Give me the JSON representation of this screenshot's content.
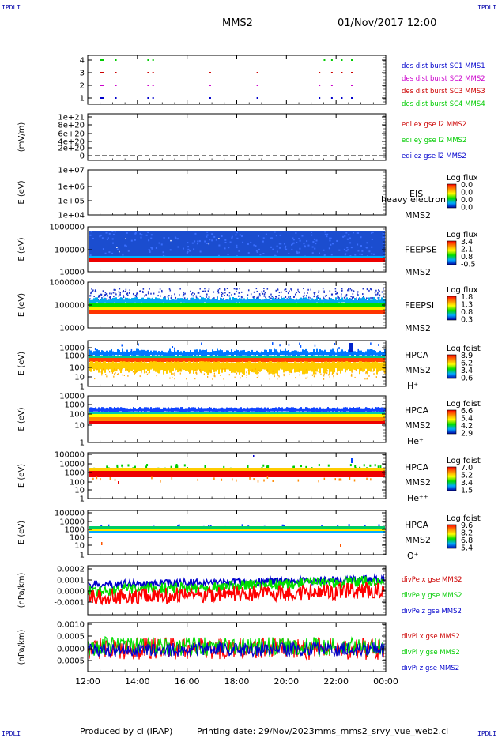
{
  "corners": {
    "label": "IPDLI"
  },
  "header": {
    "spacecraft": "MMS2",
    "date": "01/Nov/2017 12:00"
  },
  "footer": {
    "produced": "Produced by cl (IRAP)",
    "printing": "Printing date: 29/Nov/2023",
    "file": "mms_mms2_srvy_vue_web2.cl"
  },
  "time_axis": {
    "ticks": [
      "12:00",
      "14:00",
      "16:00",
      "18:00",
      "20:00",
      "22:00",
      "00:00"
    ],
    "start_hour": 12,
    "end_hour": 24
  },
  "colors": {
    "red": "#ff0000",
    "green": "#00dd00",
    "blue": "#0000cc",
    "magenta": "#cc00cc"
  },
  "chart_data": [
    {
      "type": "scatter",
      "panel": "burst",
      "yticks": [
        "4",
        "3",
        "2",
        "1"
      ],
      "legend": [
        {
          "text": "des dist burst SC1 MMS1",
          "color": "#0000cc"
        },
        {
          "text": "des dist burst SC2 MMS2",
          "color": "#cc00cc"
        },
        {
          "text": "des dist burst SC3 MMS3",
          "color": "#cc0000"
        },
        {
          "text": "des dist burst SC4 MMS4",
          "color": "#00cc00"
        }
      ],
      "series": [
        {
          "name": "des dist burst SC4 MMS4",
          "y": 4,
          "x": [
            12.5,
            13.1,
            14.4,
            14.6,
            21.5,
            21.8,
            22.2,
            22.6
          ]
        },
        {
          "name": "des dist burst SC3 MMS3",
          "y": 3,
          "x": [
            12.5,
            13.1,
            14.4,
            14.6,
            16.9,
            18.8,
            21.3,
            21.8,
            22.2,
            22.6
          ]
        },
        {
          "name": "des dist burst SC2 MMS2",
          "y": 2,
          "x": [
            12.5,
            13.1,
            14.4,
            14.6,
            16.9,
            18.8,
            21.3,
            21.8,
            22.6
          ]
        },
        {
          "name": "des dist burst SC1 MMS1",
          "y": 1,
          "x": [
            12.5,
            13.1,
            14.4,
            14.6,
            16.9,
            18.8,
            21.3,
            21.8,
            22.2,
            22.6
          ]
        }
      ]
    },
    {
      "type": "line",
      "panel": "edi",
      "ylabel": "(mV/m)",
      "yticks": [
        "1e+21",
        "8e+20",
        "6e+20",
        "4e+20",
        "2e+20",
        "0"
      ],
      "legend": [
        {
          "text": "edi ex gse l2 MMS2",
          "color": "#cc0000"
        },
        {
          "text": "edi ey gse l2 MMS2",
          "color": "#00cc00"
        },
        {
          "text": "edi ez gse l2 MMS2",
          "color": "#0000cc"
        }
      ],
      "y": 0
    },
    {
      "type": "heatmap",
      "panel": "eis",
      "ylabel": "E (eV)",
      "yticks": [
        "1e+07",
        "1e+06",
        "1e+05",
        "1e+04"
      ],
      "labels": [
        "EIS",
        "heavy electron to",
        "MMS2"
      ],
      "colorbar": {
        "title": "Log flux",
        "ticks": [
          "0.0",
          "0.0",
          "0.0",
          "0.0"
        ]
      }
    },
    {
      "type": "heatmap",
      "panel": "feepse",
      "ylabel": "E (eV)",
      "yticks": [
        "1000000",
        "100000",
        "10000"
      ],
      "labels": [
        "FEEPSE",
        "MMS2"
      ],
      "colorbar": {
        "title": "Log flux",
        "ticks": [
          "3.4",
          "2.1",
          "0.8",
          "-0.5"
        ]
      }
    },
    {
      "type": "heatmap",
      "panel": "feepsi",
      "ylabel": "E (eV)",
      "yticks": [
        "1000000",
        "100000",
        "10000"
      ],
      "labels": [
        "FEEPSI",
        "MMS2"
      ],
      "colorbar": {
        "title": "Log flux",
        "ticks": [
          "1.8",
          "1.3",
          "0.8",
          "0.3"
        ]
      }
    },
    {
      "type": "heatmap",
      "panel": "hpca_h",
      "ylabel": "E (eV)",
      "yticks": [
        "10000",
        "1000",
        "100",
        "10",
        "1"
      ],
      "labels": [
        "HPCA",
        "MMS2",
        "H⁺"
      ],
      "colorbar": {
        "title": "Log fdist",
        "ticks": [
          "8.9",
          "6.2",
          "3.4",
          "0.6"
        ]
      }
    },
    {
      "type": "heatmap",
      "panel": "hpca_he",
      "ylabel": "E (eV)",
      "yticks": [
        "10000",
        "1000",
        "100",
        "10",
        "1"
      ],
      "labels": [
        "HPCA",
        "MMS2",
        "He⁺"
      ],
      "colorbar": {
        "title": "Log fdist",
        "ticks": [
          "6.6",
          "5.4",
          "4.2",
          "2.9"
        ]
      }
    },
    {
      "type": "heatmap",
      "panel": "hpca_hepp",
      "ylabel": "E (eV)",
      "yticks": [
        "100000",
        "10000",
        "1000",
        "100",
        "10",
        "1"
      ],
      "labels": [
        "HPCA",
        "MMS2",
        "He⁺⁺"
      ],
      "colorbar": {
        "title": "Log fdist",
        "ticks": [
          "7.0",
          "5.2",
          "3.4",
          "1.5"
        ]
      }
    },
    {
      "type": "heatmap",
      "panel": "hpca_o",
      "ylabel": "E (eV)",
      "yticks": [
        "100000",
        "10000",
        "1000",
        "100",
        "10",
        "1"
      ],
      "labels": [
        "HPCA",
        "MMS2",
        "O⁺"
      ],
      "colorbar": {
        "title": "Log fdist",
        "ticks": [
          "9.6",
          "8.2",
          "6.8",
          "5.4"
        ]
      }
    },
    {
      "type": "line",
      "panel": "divpe",
      "ylabel": "(nPa/km)",
      "yticks": [
        "0.0002",
        "0.0001",
        "0.0000",
        "-0.0001"
      ],
      "legend": [
        {
          "text": "divPe x gse MMS2",
          "color": "#cc0000"
        },
        {
          "text": "divPe y gse MMS2",
          "color": "#00cc00"
        },
        {
          "text": "divPe z gse MMS2",
          "color": "#0000cc"
        }
      ]
    },
    {
      "type": "line",
      "panel": "divpi",
      "ylabel": "(nPa/km)",
      "yticks": [
        "0.0010",
        "0.0005",
        "0.0000",
        "-0.0005"
      ],
      "legend": [
        {
          "text": "divPi x gse MMS2",
          "color": "#cc0000"
        },
        {
          "text": "divPi y gse MMS2",
          "color": "#00cc00"
        },
        {
          "text": "divPi z gse MMS2",
          "color": "#0000cc"
        }
      ]
    }
  ]
}
